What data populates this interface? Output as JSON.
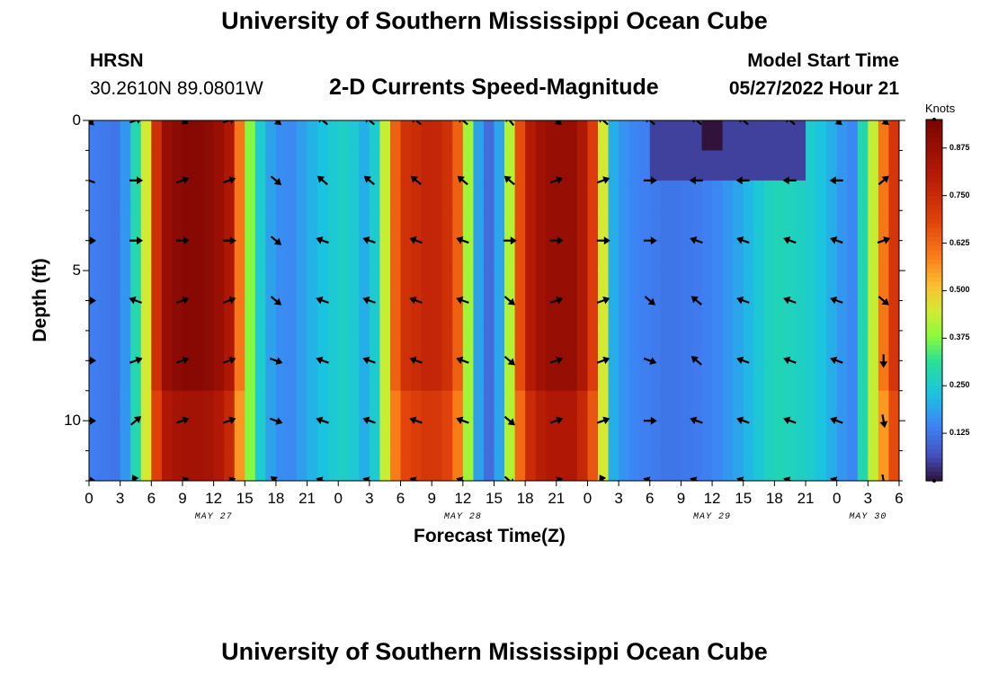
{
  "titles": {
    "main": "University of Southern Mississippi Ocean Cube",
    "repeat": "University of Southern Mississippi Ocean Cube"
  },
  "header": {
    "station": "HRSN",
    "coords": "30.2610N  89.0801W",
    "plot_title": "2-D Currents Speed-Magnitude",
    "model_label": "Model Start Time",
    "model_time": "05/27/2022 Hour 21"
  },
  "colorbar": {
    "units": "Knots",
    "ticks": [
      "0.875",
      "0.750",
      "0.625",
      "0.500",
      "0.375",
      "0.250",
      "0.125"
    ],
    "tick_values": [
      0.875,
      0.75,
      0.625,
      0.5,
      0.375,
      0.25,
      0.125
    ],
    "range": [
      0,
      0.95
    ]
  },
  "chart_data": {
    "type": "heatmap",
    "title": "2-D Currents Speed-Magnitude",
    "xlabel": "Forecast Time(Z)",
    "ylabel": "Depth (ft)",
    "x_tick_labels": [
      "0",
      "3",
      "6",
      "9",
      "12",
      "15",
      "18",
      "21",
      "0",
      "3",
      "6",
      "9",
      "12",
      "15",
      "18",
      "21",
      "0",
      "3",
      "6",
      "9",
      "12",
      "15",
      "18",
      "21",
      "0",
      "3",
      "6"
    ],
    "x_hour_range": [
      0,
      78
    ],
    "date_labels": [
      {
        "text": "MAY 27",
        "hour": 12
      },
      {
        "text": "MAY 28",
        "hour": 36
      },
      {
        "text": "MAY 29",
        "hour": 60
      },
      {
        "text": "MAY 30",
        "hour": 75
      }
    ],
    "y_ticks": [
      0,
      5,
      10
    ],
    "y_tick_labels": [
      "0",
      "5",
      "10"
    ],
    "ylim": [
      0,
      12
    ],
    "speed_units": "knots",
    "time_profile": [
      [
        0,
        0.14
      ],
      [
        3,
        0.12
      ],
      [
        4,
        0.22
      ],
      [
        5,
        0.35
      ],
      [
        5.5,
        0.45
      ],
      [
        6,
        0.62
      ],
      [
        7,
        0.86
      ],
      [
        8,
        0.9
      ],
      [
        10,
        0.92
      ],
      [
        12,
        0.9
      ],
      [
        13.5,
        0.82
      ],
      [
        14.5,
        0.6
      ],
      [
        15.2,
        0.42
      ],
      [
        16,
        0.3
      ],
      [
        17,
        0.2
      ],
      [
        19,
        0.14
      ],
      [
        22,
        0.22
      ],
      [
        25,
        0.27
      ],
      [
        26,
        0.22
      ],
      [
        27,
        0.18
      ],
      [
        28,
        0.32
      ],
      [
        29,
        0.55
      ],
      [
        30,
        0.72
      ],
      [
        33,
        0.78
      ],
      [
        35,
        0.72
      ],
      [
        36,
        0.55
      ],
      [
        37,
        0.25
      ],
      [
        38,
        0.12
      ],
      [
        39,
        0.1
      ],
      [
        40,
        0.28
      ],
      [
        41,
        0.55
      ],
      [
        42,
        0.78
      ],
      [
        44,
        0.88
      ],
      [
        47,
        0.88
      ],
      [
        48.5,
        0.7
      ],
      [
        49.5,
        0.45
      ],
      [
        50.5,
        0.2
      ],
      [
        52,
        0.15
      ],
      [
        56,
        0.12
      ],
      [
        60,
        0.14
      ],
      [
        63,
        0.2
      ],
      [
        66,
        0.28
      ],
      [
        69,
        0.26
      ],
      [
        71,
        0.22
      ],
      [
        72,
        0.18
      ],
      [
        73.5,
        0.15
      ],
      [
        75,
        0.35
      ],
      [
        76.5,
        0.6
      ],
      [
        78,
        0.78
      ]
    ],
    "surface_layer": {
      "depth_to_ft": 1.6,
      "hour_range": [
        54,
        69
      ],
      "speed": 0.05,
      "minimum": {
        "hour": 60,
        "depth_ft": 0.2,
        "speed": 0.0
      }
    },
    "arrow_depths_ft": [
      0,
      2,
      4,
      6,
      8,
      10,
      12
    ],
    "arrow_hours": [
      0,
      4.5,
      9,
      13.5,
      18,
      22.5,
      27,
      31.5,
      36,
      40.5,
      45,
      49.5,
      54,
      58.5,
      63,
      67.5,
      72,
      76.5
    ],
    "arrow_angles_deg": [
      [
        45,
        -20,
        30,
        -20,
        40,
        220,
        220,
        220,
        220,
        230,
        40,
        220,
        220,
        220,
        220,
        220,
        40,
        40
      ],
      [
        200,
        0,
        -20,
        -20,
        40,
        220,
        220,
        220,
        220,
        220,
        -20,
        -20,
        0,
        180,
        180,
        180,
        180,
        -40
      ],
      [
        0,
        0,
        0,
        0,
        40,
        200,
        200,
        200,
        200,
        0,
        0,
        0,
        0,
        200,
        200,
        200,
        200,
        -20
      ],
      [
        0,
        200,
        -20,
        -20,
        40,
        200,
        200,
        200,
        200,
        40,
        -20,
        -20,
        40,
        220,
        200,
        200,
        200,
        40
      ],
      [
        0,
        -20,
        -20,
        -20,
        20,
        200,
        200,
        200,
        200,
        40,
        -20,
        -20,
        20,
        220,
        200,
        200,
        200,
        90
      ],
      [
        0,
        -40,
        -20,
        -20,
        20,
        200,
        200,
        200,
        200,
        40,
        -20,
        -20,
        0,
        200,
        200,
        200,
        200,
        80
      ],
      [
        0,
        240,
        -20,
        -20,
        220,
        200,
        200,
        200,
        200,
        40,
        -20,
        240,
        200,
        200,
        200,
        200,
        200,
        80
      ]
    ]
  }
}
